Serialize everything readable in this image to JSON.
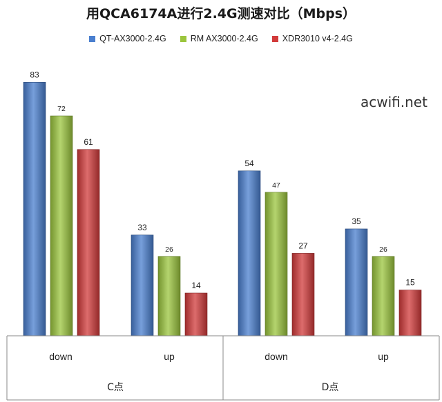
{
  "chart_data": {
    "type": "bar",
    "title": "用QCA6174A进行2.4G测速对比（Mbps）",
    "groups": [
      {
        "label": "C点",
        "categories": [
          "down",
          "up"
        ]
      },
      {
        "label": "D点",
        "categories": [
          "down",
          "up"
        ]
      }
    ],
    "categories": [
      "down",
      "up",
      "down",
      "up"
    ],
    "series": [
      {
        "name": "QT-AX3000-2.4G",
        "color": "#4a7fcf",
        "values": [
          83,
          33,
          54,
          35
        ]
      },
      {
        "name": "RM AX3000-2.4G",
        "color": "#9bc53d",
        "values": [
          72,
          26,
          47,
          26
        ]
      },
      {
        "name": "XDR3010 v4-2.4G",
        "color": "#d23b3b",
        "values": [
          61,
          14,
          27,
          15
        ]
      }
    ],
    "ylim": [
      0,
      90
    ],
    "grid": false,
    "legend_position": "top"
  },
  "watermark": "acwifi.net"
}
